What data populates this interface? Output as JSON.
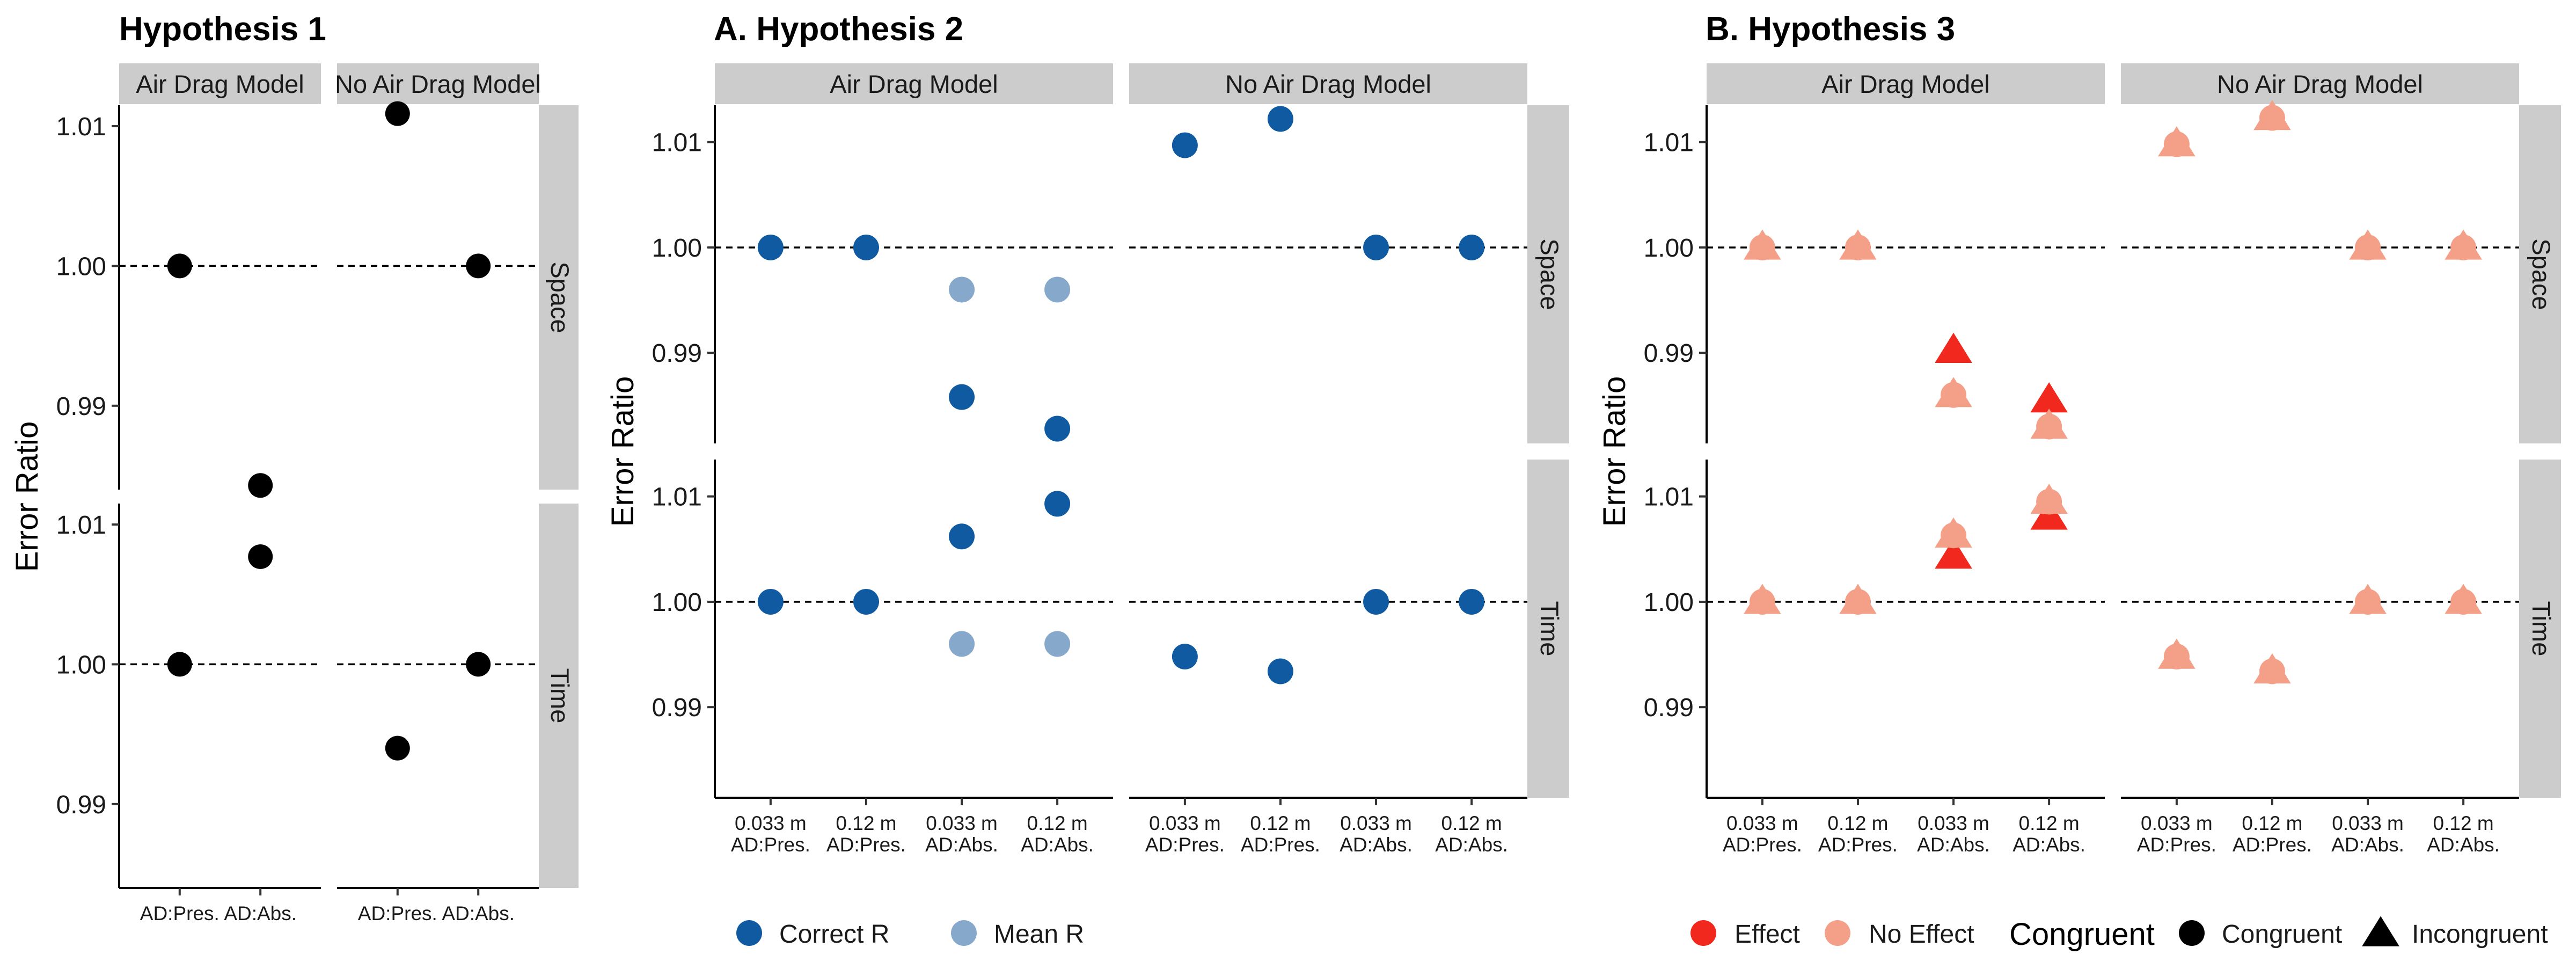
{
  "chart_data": [
    {
      "title": "Hypothesis 1",
      "type": "scatter",
      "ylabel": "Error Ratio",
      "ylim": [
        0.984,
        1.0115
      ],
      "column_panels": [
        "Air Drag Model",
        "No Air Drag Model"
      ],
      "row_panels": [
        "Space",
        "Time"
      ],
      "x_categories": [
        "AD:Pres.",
        "AD:Abs."
      ],
      "reference_line": 1.0,
      "point_color": "#000000",
      "points": [
        {
          "column": "Air Drag Model",
          "row": "Space",
          "x": "AD:Pres.",
          "y": 1.0
        },
        {
          "column": "Air Drag Model",
          "row": "Space",
          "x": "AD:Abs.",
          "y": 0.9843
        },
        {
          "column": "No Air Drag Model",
          "row": "Space",
          "x": "AD:Pres.",
          "y": 1.0109
        },
        {
          "column": "No Air Drag Model",
          "row": "Space",
          "x": "AD:Abs.",
          "y": 1.0
        },
        {
          "column": "Air Drag Model",
          "row": "Time",
          "x": "AD:Pres.",
          "y": 1.0
        },
        {
          "column": "Air Drag Model",
          "row": "Time",
          "x": "AD:Abs.",
          "y": 1.0077
        },
        {
          "column": "No Air Drag Model",
          "row": "Time",
          "x": "AD:Pres.",
          "y": 0.994
        },
        {
          "column": "No Air Drag Model",
          "row": "Time",
          "x": "AD:Abs.",
          "y": 1.0
        }
      ]
    },
    {
      "title": "A. Hypothesis 2",
      "type": "scatter",
      "ylabel": "Error Ratio",
      "ylim": [
        0.9814,
        1.0135
      ],
      "column_panels": [
        "Air Drag Model",
        "No Air Drag Model"
      ],
      "row_panels": [
        "Space",
        "Time"
      ],
      "x_categories": [
        [
          "0.033 m",
          "AD:Pres."
        ],
        [
          "0.12 m",
          "AD:Pres."
        ],
        [
          "0.033 m",
          "AD:Abs."
        ],
        [
          "0.12 m",
          "AD:Abs."
        ]
      ],
      "reference_line": 1.0,
      "series": [
        {
          "name": "Correct R",
          "color": "#0f5aa0",
          "points": [
            {
              "column": "Air Drag Model",
              "row": "Space",
              "x": 0,
              "y": 1.0
            },
            {
              "column": "Air Drag Model",
              "row": "Space",
              "x": 1,
              "y": 1.0
            },
            {
              "column": "Air Drag Model",
              "row": "Space",
              "x": 2,
              "y": 0.9858
            },
            {
              "column": "Air Drag Model",
              "row": "Space",
              "x": 3,
              "y": 0.9828
            },
            {
              "column": "No Air Drag Model",
              "row": "Space",
              "x": 0,
              "y": 1.0097
            },
            {
              "column": "No Air Drag Model",
              "row": "Space",
              "x": 1,
              "y": 1.0122
            },
            {
              "column": "No Air Drag Model",
              "row": "Space",
              "x": 2,
              "y": 1.0
            },
            {
              "column": "No Air Drag Model",
              "row": "Space",
              "x": 3,
              "y": 1.0
            },
            {
              "column": "Air Drag Model",
              "row": "Time",
              "x": 0,
              "y": 1.0
            },
            {
              "column": "Air Drag Model",
              "row": "Time",
              "x": 1,
              "y": 1.0
            },
            {
              "column": "Air Drag Model",
              "row": "Time",
              "x": 2,
              "y": 1.0062
            },
            {
              "column": "Air Drag Model",
              "row": "Time",
              "x": 3,
              "y": 1.0093
            },
            {
              "column": "No Air Drag Model",
              "row": "Time",
              "x": 0,
              "y": 0.9948
            },
            {
              "column": "No Air Drag Model",
              "row": "Time",
              "x": 1,
              "y": 0.9934
            },
            {
              "column": "No Air Drag Model",
              "row": "Time",
              "x": 2,
              "y": 1.0
            },
            {
              "column": "No Air Drag Model",
              "row": "Time",
              "x": 3,
              "y": 1.0
            }
          ]
        },
        {
          "name": "Mean R",
          "color": "#86a9cb",
          "points": [
            {
              "column": "Air Drag Model",
              "row": "Space",
              "x": 2,
              "y": 0.996
            },
            {
              "column": "Air Drag Model",
              "row": "Space",
              "x": 3,
              "y": 0.996
            },
            {
              "column": "Air Drag Model",
              "row": "Time",
              "x": 2,
              "y": 0.996
            },
            {
              "column": "Air Drag Model",
              "row": "Time",
              "x": 3,
              "y": 0.996
            }
          ]
        }
      ]
    },
    {
      "title": "B. Hypothesis 3",
      "type": "scatter",
      "ylabel": "Error Ratio",
      "ylim": [
        0.9814,
        1.0135
      ],
      "column_panels": [
        "Air Drag Model",
        "No Air Drag Model"
      ],
      "row_panels": [
        "Space",
        "Time"
      ],
      "x_categories": [
        [
          "0.033 m",
          "AD:Pres."
        ],
        [
          "0.12 m",
          "AD:Pres."
        ],
        [
          "0.033 m",
          "AD:Abs."
        ],
        [
          "0.12 m",
          "AD:Abs."
        ]
      ],
      "reference_line": 1.0,
      "legend_color": [
        {
          "name": "Effect",
          "color": "#f0281e"
        },
        {
          "name": "No Effect",
          "color": "#f4a088"
        }
      ],
      "legend_shape_title": "Congruent",
      "legend_shape": [
        {
          "name": "Congruent",
          "shape": "circle"
        },
        {
          "name": "Incongruent",
          "shape": "triangle"
        }
      ],
      "points": [
        {
          "column": "Air Drag Model",
          "row": "Space",
          "x": 0,
          "y": 1.0,
          "effect": "No Effect",
          "shape": "overlay"
        },
        {
          "column": "Air Drag Model",
          "row": "Space",
          "x": 1,
          "y": 1.0,
          "effect": "No Effect",
          "shape": "overlay"
        },
        {
          "column": "Air Drag Model",
          "row": "Space",
          "x": 2,
          "y": 0.9902,
          "effect": "Effect",
          "shape": "triangle"
        },
        {
          "column": "Air Drag Model",
          "row": "Space",
          "x": 2,
          "y": 0.986,
          "effect": "No Effect",
          "shape": "overlay"
        },
        {
          "column": "Air Drag Model",
          "row": "Space",
          "x": 3,
          "y": 0.9855,
          "effect": "Effect",
          "shape": "triangle"
        },
        {
          "column": "Air Drag Model",
          "row": "Space",
          "x": 3,
          "y": 0.983,
          "effect": "No Effect",
          "shape": "overlay"
        },
        {
          "column": "No Air Drag Model",
          "row": "Space",
          "x": 0,
          "y": 1.0098,
          "effect": "No Effect",
          "shape": "overlay"
        },
        {
          "column": "No Air Drag Model",
          "row": "Space",
          "x": 1,
          "y": 1.0123,
          "effect": "No Effect",
          "shape": "overlay"
        },
        {
          "column": "No Air Drag Model",
          "row": "Space",
          "x": 2,
          "y": 1.0,
          "effect": "No Effect",
          "shape": "overlay"
        },
        {
          "column": "No Air Drag Model",
          "row": "Space",
          "x": 3,
          "y": 1.0,
          "effect": "No Effect",
          "shape": "overlay"
        },
        {
          "column": "Air Drag Model",
          "row": "Time",
          "x": 0,
          "y": 1.0,
          "effect": "No Effect",
          "shape": "overlay"
        },
        {
          "column": "Air Drag Model",
          "row": "Time",
          "x": 1,
          "y": 1.0,
          "effect": "No Effect",
          "shape": "overlay"
        },
        {
          "column": "Air Drag Model",
          "row": "Time",
          "x": 2,
          "y": 1.0043,
          "effect": "Effect",
          "shape": "triangle"
        },
        {
          "column": "Air Drag Model",
          "row": "Time",
          "x": 2,
          "y": 1.0063,
          "effect": "No Effect",
          "shape": "overlay"
        },
        {
          "column": "Air Drag Model",
          "row": "Time",
          "x": 3,
          "y": 1.008,
          "effect": "Effect",
          "shape": "triangle"
        },
        {
          "column": "Air Drag Model",
          "row": "Time",
          "x": 3,
          "y": 1.0095,
          "effect": "No Effect",
          "shape": "overlay"
        },
        {
          "column": "No Air Drag Model",
          "row": "Time",
          "x": 0,
          "y": 0.9948,
          "effect": "No Effect",
          "shape": "overlay"
        },
        {
          "column": "No Air Drag Model",
          "row": "Time",
          "x": 1,
          "y": 0.9934,
          "effect": "No Effect",
          "shape": "overlay"
        },
        {
          "column": "No Air Drag Model",
          "row": "Time",
          "x": 2,
          "y": 1.0,
          "effect": "No Effect",
          "shape": "overlay"
        },
        {
          "column": "No Air Drag Model",
          "row": "Time",
          "x": 3,
          "y": 1.0,
          "effect": "No Effect",
          "shape": "overlay"
        }
      ]
    }
  ]
}
